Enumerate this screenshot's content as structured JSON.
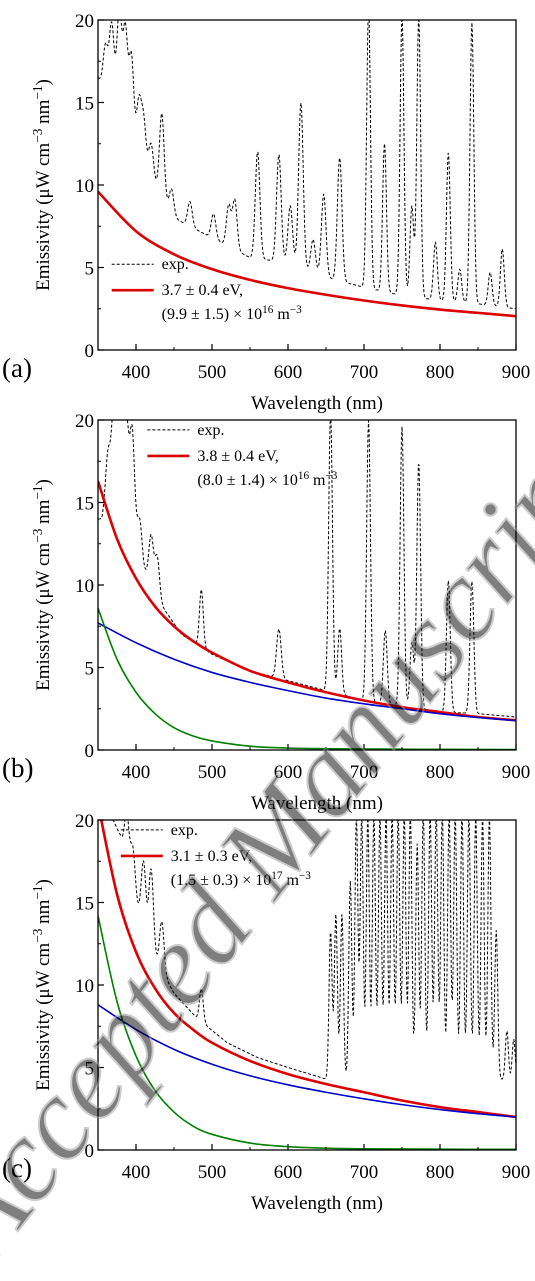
{
  "watermark": "Accepted Manuscript",
  "chart_data": [
    {
      "type": "line",
      "panel_label": "(a)",
      "xlabel": "Wavelength (nm)",
      "ylabel": "Emissivity (μW cm⁻³ nm⁻¹)",
      "xlim": [
        350,
        900
      ],
      "ylim": [
        0,
        20
      ],
      "x_ticks": [
        400,
        500,
        600,
        700,
        800,
        900
      ],
      "y_ticks": [
        0,
        5,
        10,
        15,
        20
      ],
      "grid": false,
      "legend_position": "lower-left",
      "legend": [
        {
          "series": "exp",
          "label": "exp.",
          "line1": "exp.",
          "line2": ""
        },
        {
          "series": "fit",
          "label": "3.7 ± 0.4 eV, (9.9 ± 1.5) × 10¹⁶ m⁻³",
          "line1": "3.7 ± 0.4 eV,",
          "line2": "(9.9 ± 1.5) × 10¹⁶ m⁻³"
        }
      ],
      "series": [
        {
          "id": "exp",
          "name": "exp.",
          "color": "#000000",
          "style": "dashed",
          "continuum": [
            [
              350,
              16.5
            ],
            [
              360,
              16
            ],
            [
              380,
              15.5
            ],
            [
              400,
              12.5
            ],
            [
              420,
              10.5
            ],
            [
              450,
              8
            ],
            [
              500,
              6.8
            ],
            [
              550,
              5.6
            ],
            [
              600,
              5.3
            ],
            [
              650,
              4.4
            ],
            [
              700,
              3.8
            ],
            [
              750,
              3.3
            ],
            [
              800,
              3.0
            ],
            [
              850,
              2.8
            ],
            [
              900,
              2.5
            ]
          ],
          "peaks": [
            [
              360,
              2.5,
              3
            ],
            [
              368,
              4,
              3
            ],
            [
              378,
              5,
              3
            ],
            [
              386,
              5,
              3
            ],
            [
              394,
              4.5,
              3
            ],
            [
              404,
              3,
              3
            ],
            [
              410,
              2.5,
              3
            ],
            [
              420,
              2,
              3
            ],
            [
              434,
              5,
              3
            ],
            [
              447,
              1.5,
              3
            ],
            [
              471,
              1.5,
              3
            ],
            [
              502,
              1.5,
              3
            ],
            [
              522,
              2.5,
              3
            ],
            [
              530,
              3,
              3
            ],
            [
              560,
              6.5,
              3
            ],
            [
              588,
              6.5,
              3
            ],
            [
              603,
              3.5,
              3
            ],
            [
              617,
              10,
              3
            ],
            [
              633,
              2,
              3
            ],
            [
              647,
              5,
              3
            ],
            [
              668,
              7.5,
              3
            ],
            [
              706,
              17,
              2.5
            ],
            [
              727,
              9,
              2.5
            ],
            [
              750,
              17,
              2.5
            ],
            [
              763,
              5.5,
              2.5
            ],
            [
              772,
              17,
              2.5
            ],
            [
              794,
              3.5,
              2.5
            ],
            [
              811,
              9,
              2.5
            ],
            [
              826,
              2,
              2.5
            ],
            [
              842,
              17,
              2.5
            ],
            [
              866,
              2,
              2.5
            ],
            [
              882,
              3.5,
              2.5
            ]
          ]
        },
        {
          "id": "fit",
          "name": "3.7 ± 0.4 eV, (9.9 ± 1.5) × 10¹⁶ m⁻³",
          "color": "#dd0000",
          "style": "solid",
          "x": [
            350,
            400,
            450,
            500,
            550,
            600,
            650,
            700,
            750,
            800,
            850,
            900
          ],
          "y": [
            9.6,
            7.2,
            5.8,
            4.9,
            4.25,
            3.75,
            3.35,
            3.0,
            2.7,
            2.45,
            2.25,
            2.05
          ]
        }
      ]
    },
    {
      "type": "line",
      "panel_label": "(b)",
      "xlabel": "Wavelength (nm)",
      "ylabel": "Emissivity (μW cm⁻³ nm⁻¹)",
      "xlim": [
        350,
        900
      ],
      "ylim": [
        0,
        20
      ],
      "x_ticks": [
        400,
        500,
        600,
        700,
        800,
        900
      ],
      "y_ticks": [
        0,
        5,
        10,
        15,
        20
      ],
      "grid": false,
      "legend_position": "top",
      "legend": [
        {
          "series": "exp",
          "label": "exp.",
          "line1": "exp.",
          "line2": ""
        },
        {
          "series": "fit",
          "label": "3.8 ± 0.4 eV, (8.0 ± 1.4) × 10¹⁶ m⁻³",
          "line1": "3.8 ± 0.4 eV,",
          "line2": "(8.0 ± 1.4) × 10¹⁶ m⁻³"
        }
      ],
      "series": [
        {
          "id": "exp",
          "name": "exp.",
          "color": "#000000",
          "style": "dashed",
          "continuum": [
            [
              355,
              14
            ],
            [
              370,
              17
            ],
            [
              390,
              15
            ],
            [
              410,
              11
            ],
            [
              430,
              9
            ],
            [
              460,
              7
            ],
            [
              500,
              5.8
            ],
            [
              550,
              4.8
            ],
            [
              600,
              4.2
            ],
            [
              650,
              3.6
            ],
            [
              700,
              3.0
            ],
            [
              750,
              2.6
            ],
            [
              800,
              2.3
            ],
            [
              850,
              2.2
            ],
            [
              900,
              2.0
            ]
          ],
          "peaks": [
            [
              363,
              2.5,
              3
            ],
            [
              371,
              4,
              3
            ],
            [
              379,
              6,
              3
            ],
            [
              387,
              5,
              3
            ],
            [
              395,
              5.5,
              3
            ],
            [
              405,
              2,
              3
            ],
            [
              420,
              3,
              3
            ],
            [
              428,
              2.5,
              3
            ],
            [
              486,
              3.5,
              2.5
            ],
            [
              588,
              3,
              3
            ],
            [
              656,
              17,
              2.5
            ],
            [
              668,
              4,
              2.5
            ],
            [
              706,
              17,
              2.5
            ],
            [
              728,
              4.5,
              2.5
            ],
            [
              750,
              17,
              2.5
            ],
            [
              763,
              4,
              2.5
            ],
            [
              772,
              15,
              2.5
            ],
            [
              811,
              8,
              2.5
            ],
            [
              842,
              8,
              2.5
            ]
          ]
        },
        {
          "id": "fit",
          "name": "3.8 ± 0.4 eV, (8.0 ± 1.4) × 10¹⁶ m⁻³",
          "color": "#dd0000",
          "style": "solid",
          "x": [
            350,
            375,
            400,
            425,
            450,
            475,
            500,
            550,
            600,
            650,
            700,
            750,
            800,
            850,
            900
          ],
          "y": [
            16.3,
            12.8,
            10.4,
            8.7,
            7.5,
            6.6,
            5.9,
            4.8,
            4.1,
            3.5,
            3.0,
            2.6,
            2.3,
            2.0,
            1.8
          ]
        },
        {
          "id": "comp1",
          "name": "",
          "color": "#0000cc",
          "style": "solid",
          "x": [
            350,
            400,
            450,
            500,
            550,
            600,
            650,
            700,
            750,
            800,
            850,
            900
          ],
          "y": [
            7.7,
            6.5,
            5.5,
            4.7,
            4.1,
            3.6,
            3.15,
            2.8,
            2.5,
            2.2,
            1.97,
            1.78
          ]
        },
        {
          "id": "comp2",
          "name": "",
          "color": "#008000",
          "style": "solid",
          "x": [
            350,
            375,
            400,
            425,
            450,
            475,
            500,
            550,
            600,
            650,
            700,
            800,
            900
          ],
          "y": [
            8.6,
            5.5,
            3.5,
            2.2,
            1.35,
            0.85,
            0.55,
            0.23,
            0.12,
            0.08,
            0.06,
            0.04,
            0.03
          ]
        }
      ]
    },
    {
      "type": "line",
      "panel_label": "(c)",
      "xlabel": "Wavelength (nm)",
      "ylabel": "Emissivity (μW cm⁻³ nm⁻¹)",
      "xlim": [
        350,
        900
      ],
      "ylim": [
        0,
        20
      ],
      "x_ticks": [
        400,
        500,
        600,
        700,
        800,
        900
      ],
      "y_ticks": [
        0,
        5,
        10,
        15,
        20
      ],
      "grid": false,
      "legend_position": "top",
      "legend": [
        {
          "series": "exp",
          "label": "exp.",
          "line1": "exp.",
          "line2": ""
        },
        {
          "series": "fit",
          "label": "3.1 ± 0.3 eV, (1.5 ± 0.3) × 10¹⁷ m⁻³",
          "line1": "3.1 ± 0.3 eV,",
          "line2": "(1.5 ± 0.3) × 10¹⁷ m⁻³"
        }
      ],
      "series": [
        {
          "id": "exp",
          "name": "exp.",
          "color": "#000000",
          "style": "dashed",
          "continuum": [
            [
              360,
              21
            ],
            [
              380,
              19
            ],
            [
              400,
              15
            ],
            [
              420,
              12
            ],
            [
              450,
              9.5
            ],
            [
              480,
              8
            ],
            [
              520,
              6.5
            ],
            [
              560,
              5.6
            ],
            [
              600,
              5.0
            ],
            [
              650,
              4.3
            ],
            [
              700,
              4.3
            ],
            [
              750,
              4.5
            ],
            [
              800,
              4.6
            ],
            [
              850,
              4.4
            ],
            [
              900,
              4.2
            ]
          ],
          "peaks": [
            [
              388,
              3,
              3
            ],
            [
              396,
              2.5,
              3
            ],
            [
              410,
              4,
              3
            ],
            [
              420,
              5,
              3
            ],
            [
              434,
              3,
              3
            ],
            [
              486,
              2,
              2.5
            ],
            [
              656,
              9,
              2
            ],
            [
              663,
              10,
              2
            ],
            [
              671,
              10,
              2
            ],
            [
              682,
              12,
              2
            ],
            [
              690,
              16,
              2
            ],
            [
              697,
              16,
              2
            ],
            [
              705,
              16,
              2
            ],
            [
              713,
              16,
              2
            ],
            [
              721,
              16,
              2
            ],
            [
              729,
              16,
              2
            ],
            [
              737,
              16,
              2
            ],
            [
              745,
              16,
              2
            ],
            [
              753,
              16,
              2
            ],
            [
              761,
              16,
              2
            ],
            [
              770,
              14,
              2
            ],
            [
              778,
              16,
              2
            ],
            [
              787,
              16,
              2
            ],
            [
              795,
              16,
              2
            ],
            [
              803,
              16,
              2
            ],
            [
              812,
              16,
              2
            ],
            [
              820,
              16,
              2
            ],
            [
              829,
              16,
              2
            ],
            [
              838,
              16,
              2
            ],
            [
              847,
              16,
              2
            ],
            [
              856,
              16,
              2
            ],
            [
              865,
              16,
              2
            ],
            [
              874,
              9,
              2
            ],
            [
              888,
              3,
              2
            ],
            [
              897,
              2.5,
              2
            ]
          ]
        },
        {
          "id": "fit",
          "name": "3.1 ± 0.3 eV, (1.5 ± 0.3) × 10¹⁷ m⁻³",
          "color": "#dd0000",
          "style": "solid",
          "x": [
            350,
            375,
            400,
            425,
            450,
            475,
            500,
            550,
            600,
            650,
            700,
            750,
            800,
            850,
            900
          ],
          "y": [
            21.0,
            15.5,
            12.0,
            9.8,
            8.3,
            7.3,
            6.5,
            5.4,
            4.6,
            4.0,
            3.5,
            3.0,
            2.6,
            2.3,
            2.0
          ]
        },
        {
          "id": "comp1",
          "name": "",
          "color": "#0000cc",
          "style": "solid",
          "x": [
            350,
            400,
            450,
            500,
            550,
            600,
            650,
            700,
            750,
            800,
            850,
            900
          ],
          "y": [
            8.8,
            7.3,
            6.1,
            5.2,
            4.5,
            3.95,
            3.5,
            3.1,
            2.75,
            2.45,
            2.2,
            2.0
          ]
        },
        {
          "id": "comp2",
          "name": "",
          "color": "#008000",
          "style": "solid",
          "x": [
            350,
            375,
            400,
            425,
            450,
            475,
            500,
            550,
            600,
            650,
            700,
            800,
            900
          ],
          "y": [
            14.2,
            9.0,
            5.7,
            3.6,
            2.3,
            1.45,
            0.95,
            0.42,
            0.2,
            0.11,
            0.07,
            0.05,
            0.04
          ]
        }
      ]
    }
  ]
}
